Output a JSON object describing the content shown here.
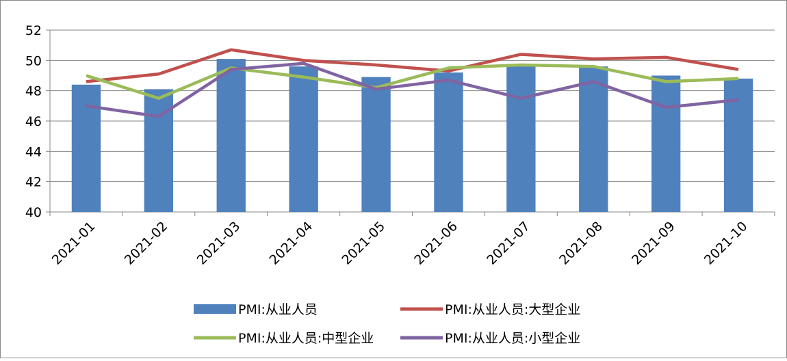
{
  "chart_data": {
    "type": "bar_line",
    "categories": [
      "2021-01",
      "2021-02",
      "2021-03",
      "2021-04",
      "2021-05",
      "2021-06",
      "2021-07",
      "2021-08",
      "2021-09",
      "2021-10"
    ],
    "series": [
      {
        "name": "PMI:从业人员",
        "type": "bar",
        "color": "#4f81bd",
        "values": [
          48.4,
          48.1,
          50.1,
          49.6,
          48.9,
          49.2,
          49.6,
          49.6,
          49.0,
          48.8
        ]
      },
      {
        "name": "PMI:从业人员:大型企业",
        "type": "line",
        "color": "#c0504d",
        "values": [
          48.6,
          49.1,
          50.7,
          50.0,
          49.7,
          49.3,
          50.4,
          50.1,
          50.2,
          49.4
        ]
      },
      {
        "name": "PMI:从业人员:中型企业",
        "type": "line",
        "color": "#9bbb59",
        "values": [
          49.0,
          47.5,
          49.5,
          48.9,
          48.2,
          49.5,
          49.7,
          49.6,
          48.6,
          48.8
        ]
      },
      {
        "name": "PMI:从业人员:小型企业",
        "type": "line",
        "color": "#8064a2",
        "values": [
          47.0,
          46.3,
          49.4,
          49.8,
          48.1,
          48.7,
          47.5,
          48.6,
          46.9,
          47.4
        ]
      }
    ],
    "ylim": [
      40,
      52
    ],
    "yticks": [
      40,
      42,
      44,
      46,
      48,
      50,
      52
    ],
    "grid": true,
    "legend": "bottom"
  }
}
